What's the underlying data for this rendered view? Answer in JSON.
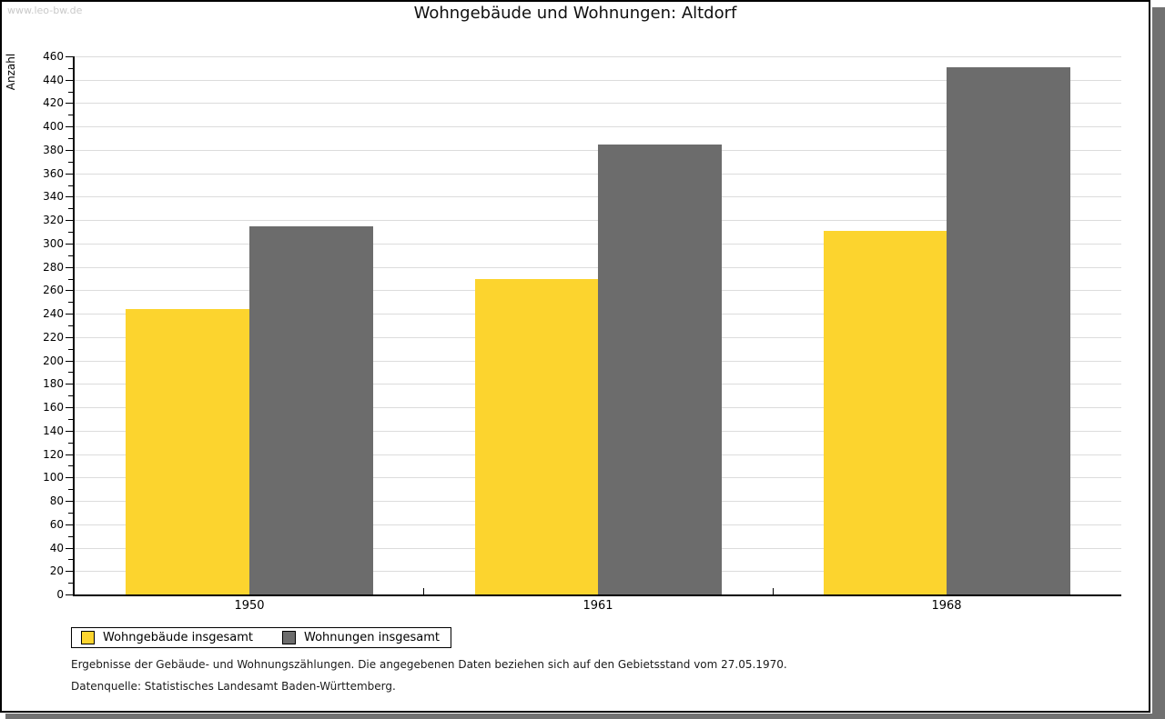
{
  "watermark": "www.leo-bw.de",
  "title": "Wohngebäude und Wohnungen: Altdorf",
  "chart_data": {
    "type": "bar",
    "categories": [
      "1950",
      "1961",
      "1968"
    ],
    "series": [
      {
        "name": "Wohngebäude insgesamt",
        "color": "#FCD42E",
        "values": [
          244,
          270,
          311
        ]
      },
      {
        "name": "Wohnungen insgesamt",
        "color": "#6C6C6C",
        "values": [
          315,
          385,
          451
        ]
      }
    ],
    "title": "Wohngebäude und Wohnungen: Altdorf",
    "xlabel": "",
    "ylabel": "Anzahl",
    "ylim": [
      0,
      460
    ],
    "ytick_step": 20,
    "minor_tick_step": 10,
    "grid": true,
    "gridline_color": "#dcdcdc",
    "legend_position": "bottom-left"
  },
  "footnotes": [
    "Ergebnisse der Gebäude- und Wohnungszählungen. Die angegebenen Daten beziehen sich auf den Gebietsstand vom 27.05.1970.",
    "Datenquelle: Statistisches Landesamt Baden-Württemberg."
  ]
}
